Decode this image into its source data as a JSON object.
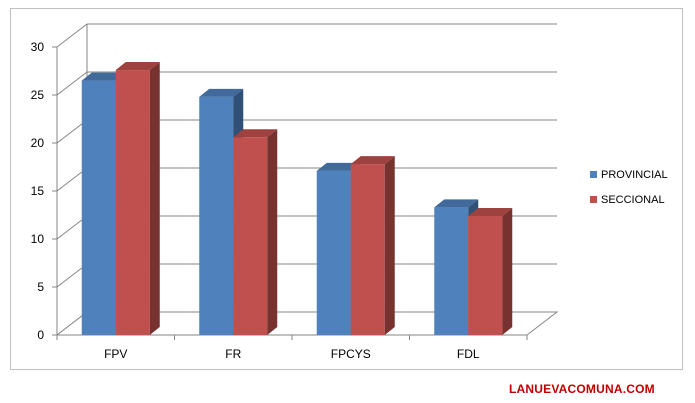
{
  "chart_data": {
    "type": "bar",
    "style": "3d-clustered-column",
    "categories": [
      "FPV",
      "FR",
      "FPCYS",
      "FDL"
    ],
    "series": [
      {
        "name": "PROVINCIAL",
        "color": "#4f81bd",
        "values": [
          26.5,
          24.8,
          17.1,
          13.3
        ]
      },
      {
        "name": "SECCIONAL",
        "color": "#c0504d",
        "values": [
          27.6,
          20.6,
          17.8,
          12.4
        ]
      }
    ],
    "ylim": [
      0,
      30
    ],
    "yticks": [
      0,
      5,
      10,
      15,
      20,
      25,
      30
    ],
    "grid": true,
    "legend_position": "right",
    "title": "",
    "xlabel": "",
    "ylabel": ""
  },
  "footer": {
    "credit": "LANUEVACOMUNA.COM"
  }
}
